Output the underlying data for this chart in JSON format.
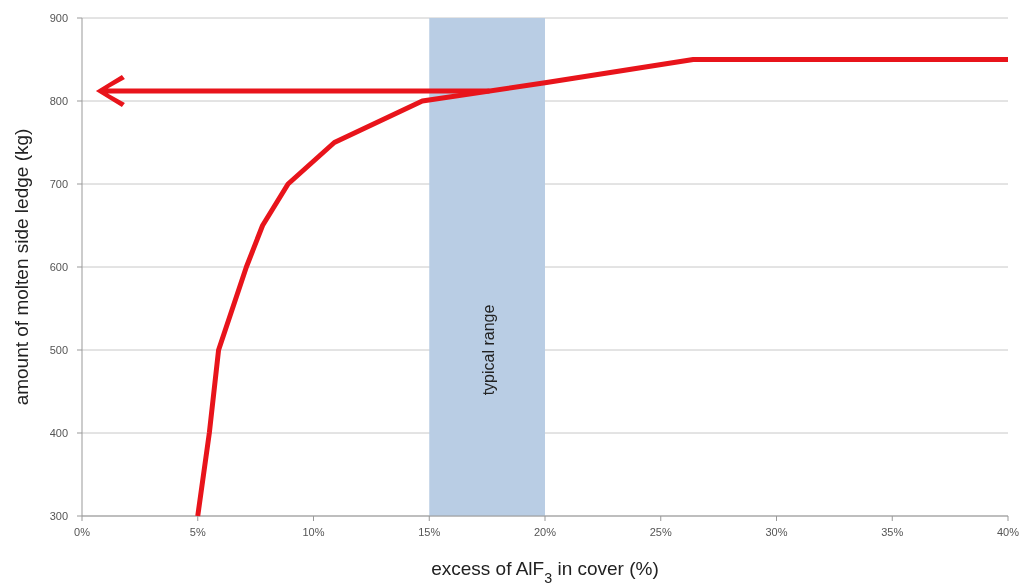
{
  "chart_data": {
    "type": "line",
    "xlabel": "excess of AlF$_{3}$ in cover (%)",
    "ylabel": "amount of molten side ledge (kg)",
    "x": [
      5.0,
      5.5,
      5.9,
      7.1,
      7.8,
      8.9,
      10.9,
      14.7,
      20,
      26.4,
      40
    ],
    "series": [
      {
        "color": "#e8141b",
        "values": [
          300,
          400,
          500,
          600,
          650,
          700,
          750,
          800,
          822,
          850,
          850
        ]
      }
    ],
    "xlim": [
      0,
      40
    ],
    "xticks": [
      {
        "value": 0,
        "label": "0%"
      },
      {
        "value": 5,
        "label": "5%"
      },
      {
        "value": 10,
        "label": "10%"
      },
      {
        "value": 15,
        "label": "15%"
      },
      {
        "value": 20,
        "label": "20%"
      },
      {
        "value": 25,
        "label": "25%"
      },
      {
        "value": 30,
        "label": "30%"
      },
      {
        "value": 35,
        "label": "35%"
      },
      {
        "value": 40,
        "label": "40%"
      }
    ],
    "ylim": [
      300,
      900
    ],
    "yticks": [
      300,
      400,
      500,
      600,
      700,
      800,
      900
    ],
    "grid": "y",
    "marker": "none",
    "line_style": "solid",
    "bands": [
      {
        "axis": "x",
        "from": 15,
        "to": 20,
        "label": "typical range",
        "color": "#b9cde4"
      }
    ]
  }
}
